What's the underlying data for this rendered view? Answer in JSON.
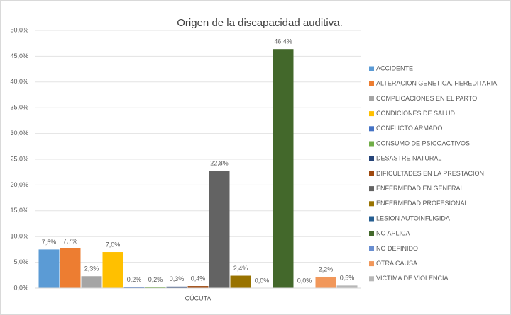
{
  "chart_data": {
    "type": "bar",
    "title": "Origen de la discapacidad auditiva.",
    "categories": [
      "CÚCUTA"
    ],
    "ylim": [
      0,
      50
    ],
    "yticks": [
      {
        "value": 0,
        "label": "0,0%"
      },
      {
        "value": 5,
        "label": "5,0%"
      },
      {
        "value": 10,
        "label": "10,0%"
      },
      {
        "value": 15,
        "label": "15,0%"
      },
      {
        "value": 20,
        "label": "20,0%"
      },
      {
        "value": 25,
        "label": "25,0%"
      },
      {
        "value": 30,
        "label": "30,0%"
      },
      {
        "value": 35,
        "label": "35,0%"
      },
      {
        "value": 40,
        "label": "40,0%"
      },
      {
        "value": 45,
        "label": "45,0%"
      },
      {
        "value": 50,
        "label": "50,0%"
      }
    ],
    "grid": true,
    "legend": "right",
    "series": [
      {
        "name": "ACCIDENTE",
        "color": "#5b9bd5",
        "values": [
          7.5
        ],
        "value_labels": [
          "7,5%"
        ]
      },
      {
        "name": "ALTERACION GENETICA, HEREDITARIA",
        "color": "#ed7d31",
        "values": [
          7.7
        ],
        "value_labels": [
          "7,7%"
        ]
      },
      {
        "name": "COMPLICACIONES EN EL PARTO",
        "color": "#a5a5a5",
        "values": [
          2.3
        ],
        "value_labels": [
          "2,3%"
        ]
      },
      {
        "name": "CONDICIONES DE SALUD",
        "color": "#ffc000",
        "values": [
          7.0
        ],
        "value_labels": [
          "7,0%"
        ]
      },
      {
        "name": "CONFLICTO ARMADO",
        "color": "#4472c4",
        "values": [
          0.2
        ],
        "value_labels": [
          "0,2%"
        ]
      },
      {
        "name": "CONSUMO DE PSICOACTIVOS",
        "color": "#70ad47",
        "values": [
          0.2
        ],
        "value_labels": [
          "0,2%"
        ]
      },
      {
        "name": "DESASTRE NATURAL",
        "color": "#264478",
        "values": [
          0.3
        ],
        "value_labels": [
          "0,3%"
        ]
      },
      {
        "name": "DIFICULTADES EN LA PRESTACION",
        "color": "#9e480e",
        "values": [
          0.4
        ],
        "value_labels": [
          "0,4%"
        ]
      },
      {
        "name": "ENFERMEDAD EN GENERAL",
        "color": "#636363",
        "values": [
          22.8
        ],
        "value_labels": [
          "22,8%"
        ]
      },
      {
        "name": "ENFERMEDAD PROFESIONAL",
        "color": "#997300",
        "values": [
          2.4
        ],
        "value_labels": [
          "2,4%"
        ]
      },
      {
        "name": "LESION AUTOINFLIGIDA",
        "color": "#255e91",
        "values": [
          0.0
        ],
        "value_labels": [
          "0,0%"
        ]
      },
      {
        "name": "NO APLICA",
        "color": "#43682b",
        "values": [
          46.4
        ],
        "value_labels": [
          "46,4%"
        ]
      },
      {
        "name": "NO DEFINIDO",
        "color": "#698ed0",
        "values": [
          0.0
        ],
        "value_labels": [
          "0,0%"
        ]
      },
      {
        "name": "OTRA CAUSA",
        "color": "#f1975a",
        "values": [
          2.2
        ],
        "value_labels": [
          "2,2%"
        ]
      },
      {
        "name": "VICTIMA DE VIOLENCIA",
        "color": "#b7b7b7",
        "values": [
          0.5
        ],
        "value_labels": [
          "0,5%"
        ]
      }
    ]
  }
}
